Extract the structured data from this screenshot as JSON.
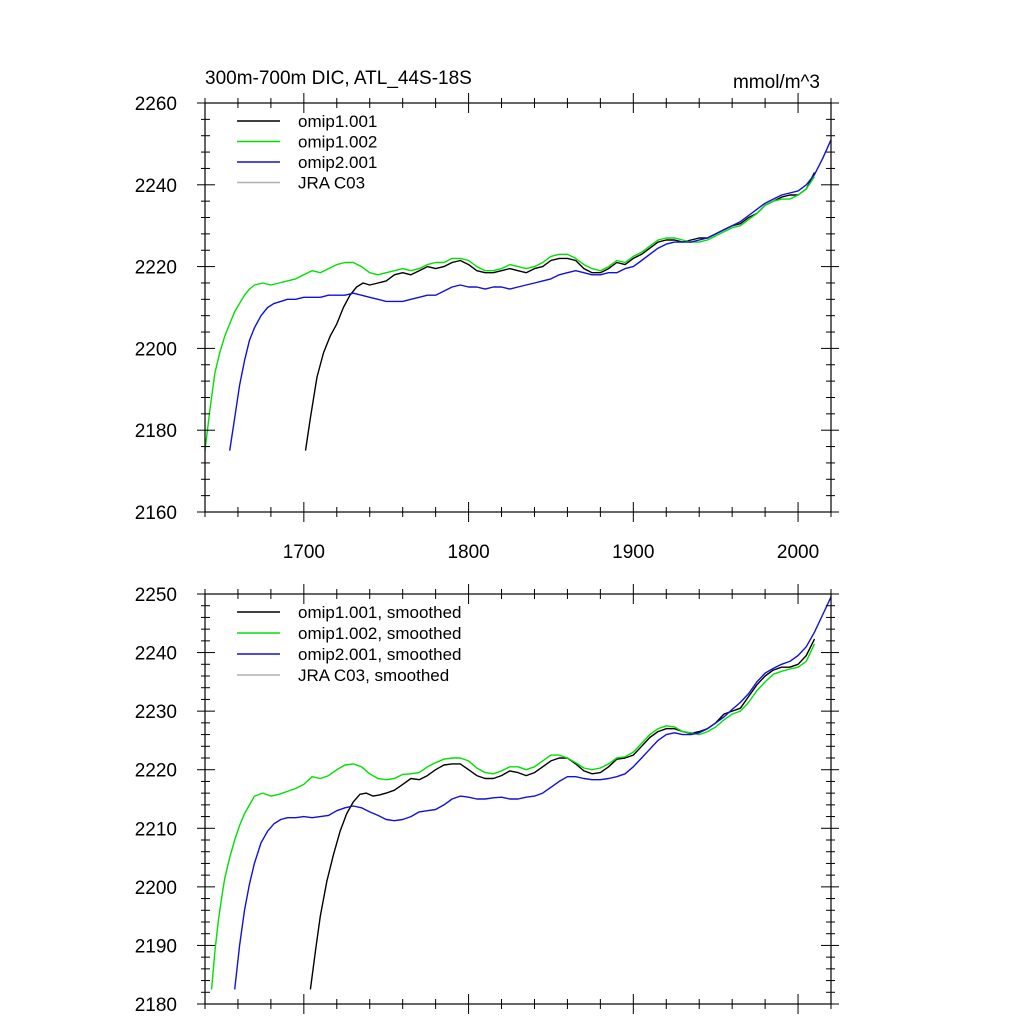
{
  "chart_data": [
    {
      "type": "line",
      "title": "300m-700m DIC, ATL_44S-18S",
      "units": "mmol/m^3",
      "xlabel": "",
      "ylabel": "",
      "xlim": [
        1640,
        2020
      ],
      "ylim": [
        2160,
        2260
      ],
      "x_ticks": [
        1700,
        1800,
        1900,
        2000
      ],
      "y_ticks": [
        2160,
        2180,
        2200,
        2220,
        2240,
        2260
      ],
      "legend_position": "top-left",
      "colors": {
        "omip1_001": "#000000",
        "omip1_002": "#00e000",
        "omip2_001": "#1010dd",
        "jra_c03": "#b0b0b0"
      },
      "series": [
        {
          "name": "omip1.001",
          "color": "#000000",
          "x": [
            1701,
            1704,
            1708,
            1712,
            1716,
            1720,
            1724,
            1728,
            1732,
            1736,
            1740,
            1745,
            1750,
            1755,
            1760,
            1765,
            1770,
            1775,
            1780,
            1785,
            1790,
            1795,
            1800,
            1805,
            1810,
            1815,
            1820,
            1825,
            1830,
            1835,
            1840,
            1845,
            1850,
            1855,
            1860,
            1865,
            1870,
            1875,
            1880,
            1885,
            1890,
            1895,
            1900,
            1905,
            1910,
            1915,
            1920,
            1925,
            1930,
            1935,
            1940,
            1945,
            1950,
            1955,
            1960,
            1965,
            1970,
            1975,
            1980,
            1985,
            1990,
            1995,
            2000,
            2005,
            2010
          ],
          "values": [
            2175,
            2183,
            2193,
            2199,
            2203,
            2206,
            2210,
            2213,
            2215,
            2216,
            2215.5,
            2216,
            2216.5,
            2218,
            2218.5,
            2218,
            2219,
            2220,
            2219.5,
            2220,
            2221,
            2221.5,
            2220.5,
            2219,
            2218.5,
            2218.5,
            2219,
            2219.5,
            2219,
            2218.5,
            2219.5,
            2220,
            2221.5,
            2222,
            2222,
            2221.5,
            2219.5,
            2218.5,
            2218.5,
            2219.5,
            2221,
            2220.5,
            2222,
            2223,
            2224.5,
            2226,
            2226.5,
            2226.5,
            2226,
            2226.5,
            2227,
            2227,
            2228,
            2229,
            2230,
            2230.5,
            2232,
            2233,
            2235,
            2236,
            2237,
            2237.5,
            2237.5,
            2239,
            2243
          ]
        },
        {
          "name": "omip1.002",
          "color": "#00e000",
          "x": [
            1640,
            1643,
            1646,
            1649,
            1652,
            1655,
            1658,
            1661,
            1664,
            1667,
            1670,
            1675,
            1680,
            1685,
            1690,
            1695,
            1700,
            1705,
            1710,
            1715,
            1720,
            1725,
            1730,
            1735,
            1740,
            1745,
            1750,
            1755,
            1760,
            1765,
            1770,
            1775,
            1780,
            1785,
            1790,
            1795,
            1800,
            1805,
            1810,
            1815,
            1820,
            1825,
            1830,
            1835,
            1840,
            1845,
            1850,
            1855,
            1860,
            1865,
            1870,
            1875,
            1880,
            1885,
            1890,
            1895,
            1900,
            1905,
            1910,
            1915,
            1920,
            1925,
            1930,
            1935,
            1940,
            1945,
            1950,
            1955,
            1960,
            1965,
            1970,
            1975,
            1980,
            1985,
            1990,
            1995,
            2000,
            2005,
            2010
          ],
          "values": [
            2175,
            2185,
            2194,
            2199,
            2203,
            2206,
            2209,
            2211,
            2213,
            2214.5,
            2215.5,
            2216,
            2215.5,
            2216,
            2216.5,
            2217,
            2218,
            2219,
            2218.5,
            2219.5,
            2220.5,
            2221,
            2221,
            2220,
            2218.5,
            2218,
            2218.5,
            2219,
            2219.5,
            2219,
            2219.5,
            2220.5,
            2221,
            2221,
            2222,
            2222,
            2221.5,
            2220,
            2219,
            2219,
            2219.5,
            2220.5,
            2220,
            2219.5,
            2220,
            2221,
            2222.5,
            2223,
            2223,
            2222,
            2220.5,
            2219.5,
            2219,
            2220,
            2221.5,
            2221,
            2222.5,
            2223.5,
            2225,
            2226.5,
            2227,
            2227,
            2226.5,
            2226,
            2226,
            2226.5,
            2227.5,
            2228.5,
            2229.5,
            2230,
            2231.5,
            2233,
            2235,
            2236,
            2236.5,
            2236.5,
            2237.5,
            2239,
            2242
          ]
        },
        {
          "name": "omip2.001",
          "color": "#1010dd",
          "x": [
            1655,
            1658,
            1661,
            1664,
            1667,
            1670,
            1674,
            1678,
            1682,
            1686,
            1690,
            1695,
            1700,
            1705,
            1710,
            1715,
            1720,
            1725,
            1730,
            1735,
            1740,
            1745,
            1750,
            1755,
            1760,
            1765,
            1770,
            1775,
            1780,
            1785,
            1790,
            1795,
            1800,
            1805,
            1810,
            1815,
            1820,
            1825,
            1830,
            1835,
            1840,
            1845,
            1850,
            1855,
            1860,
            1865,
            1870,
            1875,
            1880,
            1885,
            1890,
            1895,
            1900,
            1905,
            1910,
            1915,
            1920,
            1925,
            1930,
            1935,
            1940,
            1945,
            1950,
            1955,
            1960,
            1965,
            1970,
            1975,
            1980,
            1985,
            1990,
            1995,
            2000,
            2005,
            2010,
            2015,
            2020
          ],
          "values": [
            2175,
            2183,
            2191,
            2197,
            2202,
            2205,
            2208,
            2210,
            2211,
            2211.5,
            2212,
            2212,
            2212.5,
            2212.5,
            2212.5,
            2213,
            2213,
            2213,
            2213.5,
            2213,
            2212.5,
            2212,
            2211.5,
            2211.5,
            2211.5,
            2212,
            2212.5,
            2213,
            2213,
            2214,
            2215,
            2215.5,
            2215,
            2215,
            2214.5,
            2215,
            2215,
            2214.5,
            2215,
            2215.5,
            2216,
            2216.5,
            2217,
            2218,
            2218.5,
            2219,
            2218.5,
            2218,
            2218,
            2218.5,
            2218.5,
            2219.5,
            2220,
            2221.5,
            2223,
            2224.5,
            2225.5,
            2226,
            2226,
            2226,
            2226.5,
            2227,
            2228,
            2229,
            2230,
            2231,
            2232.5,
            2234,
            2235.5,
            2236.5,
            2237.5,
            2238,
            2238.5,
            2240,
            2242.5,
            2246.5,
            2251
          ]
        },
        {
          "name": "JRA C03",
          "color": "#b0b0b0",
          "x": [],
          "values": []
        }
      ]
    },
    {
      "type": "line",
      "title": "",
      "xlabel": "",
      "ylabel": "",
      "xlim": [
        1640,
        2020
      ],
      "ylim": [
        2180,
        2250
      ],
      "x_ticks": [
        1700,
        1800,
        1900,
        2000
      ],
      "y_ticks": [
        2180,
        2190,
        2200,
        2210,
        2220,
        2230,
        2240,
        2250
      ],
      "legend_position": "top-left",
      "series": [
        {
          "name": "omip1.001, smoothed",
          "color": "#000000",
          "x": [
            1704,
            1707,
            1710,
            1714,
            1718,
            1722,
            1726,
            1730,
            1734,
            1738,
            1742,
            1746,
            1750,
            1755,
            1760,
            1765,
            1770,
            1775,
            1780,
            1785,
            1790,
            1795,
            1800,
            1805,
            1810,
            1815,
            1820,
            1825,
            1830,
            1835,
            1840,
            1845,
            1850,
            1855,
            1860,
            1865,
            1870,
            1875,
            1880,
            1885,
            1890,
            1895,
            1900,
            1905,
            1910,
            1915,
            1920,
            1925,
            1930,
            1935,
            1940,
            1945,
            1950,
            1955,
            1960,
            1965,
            1970,
            1975,
            1980,
            1985,
            1990,
            1995,
            2000,
            2005,
            2010
          ],
          "values": [
            2182.5,
            2189,
            2195,
            2201,
            2205.5,
            2209.5,
            2212.5,
            2214.5,
            2215.8,
            2216,
            2215.5,
            2215.7,
            2216,
            2216.5,
            2217.5,
            2218.5,
            2218.3,
            2219,
            2220,
            2220.8,
            2221,
            2221,
            2220,
            2219,
            2218.5,
            2218.5,
            2219,
            2219.8,
            2219.5,
            2219,
            2219.5,
            2220.5,
            2221.5,
            2222,
            2222,
            2221,
            2219.8,
            2219.3,
            2219.5,
            2220.5,
            2221.8,
            2222,
            2222.5,
            2224,
            2225.5,
            2226.5,
            2227,
            2227,
            2226.5,
            2226.2,
            2226.5,
            2227,
            2228,
            2229.5,
            2230,
            2230.5,
            2232.5,
            2234.5,
            2236,
            2237,
            2237.5,
            2237.5,
            2238,
            2239.5,
            2242.3
          ]
        },
        {
          "name": "omip1.002, smoothed",
          "color": "#00e000",
          "x": [
            1644,
            1646,
            1648,
            1650,
            1652,
            1655,
            1658,
            1661,
            1664,
            1667,
            1670,
            1675,
            1680,
            1685,
            1690,
            1695,
            1700,
            1705,
            1710,
            1715,
            1720,
            1725,
            1730,
            1735,
            1740,
            1745,
            1750,
            1755,
            1760,
            1765,
            1770,
            1775,
            1780,
            1785,
            1790,
            1795,
            1800,
            1805,
            1810,
            1815,
            1820,
            1825,
            1830,
            1835,
            1840,
            1845,
            1850,
            1855,
            1860,
            1865,
            1870,
            1875,
            1880,
            1885,
            1890,
            1895,
            1900,
            1905,
            1910,
            1915,
            1920,
            1925,
            1930,
            1935,
            1940,
            1945,
            1950,
            1955,
            1960,
            1965,
            1970,
            1975,
            1980,
            1985,
            1990,
            1995,
            2000,
            2005,
            2010
          ],
          "values": [
            2182.5,
            2189,
            2194,
            2198,
            2201.5,
            2205,
            2208,
            2210.5,
            2212.5,
            2214,
            2215.5,
            2216,
            2215.5,
            2215.8,
            2216.3,
            2216.8,
            2217.5,
            2218.8,
            2218.5,
            2219,
            2220,
            2220.8,
            2221,
            2220.5,
            2219.3,
            2218.5,
            2218.3,
            2218.5,
            2219.2,
            2219.3,
            2219.5,
            2220.5,
            2221.2,
            2221.8,
            2222,
            2222,
            2221.5,
            2220.3,
            2219.5,
            2219.3,
            2219.8,
            2220.5,
            2220.5,
            2220,
            2220.5,
            2221.5,
            2222.5,
            2222.5,
            2222,
            2221.2,
            2220.3,
            2220,
            2220.3,
            2221,
            2222,
            2222.2,
            2223,
            2224.5,
            2226,
            2227,
            2227.5,
            2227.3,
            2226.5,
            2226.3,
            2226,
            2226.5,
            2227.3,
            2228.5,
            2229.5,
            2230,
            2231.5,
            2233.5,
            2235,
            2236.3,
            2236.8,
            2237.2,
            2237.5,
            2238.5,
            2241.5
          ]
        },
        {
          "name": "omip2.001, smoothed",
          "color": "#1010dd",
          "x": [
            1658,
            1661,
            1664,
            1667,
            1670,
            1674,
            1678,
            1682,
            1686,
            1690,
            1695,
            1700,
            1705,
            1710,
            1715,
            1720,
            1725,
            1730,
            1735,
            1740,
            1745,
            1750,
            1755,
            1760,
            1765,
            1770,
            1775,
            1780,
            1785,
            1790,
            1795,
            1800,
            1805,
            1810,
            1815,
            1820,
            1825,
            1830,
            1835,
            1840,
            1845,
            1850,
            1855,
            1860,
            1865,
            1870,
            1875,
            1880,
            1885,
            1890,
            1895,
            1900,
            1905,
            1910,
            1915,
            1920,
            1925,
            1930,
            1935,
            1940,
            1945,
            1950,
            1955,
            1960,
            1965,
            1970,
            1975,
            1980,
            1985,
            1990,
            1995,
            2000,
            2005,
            2010,
            2015,
            2020
          ],
          "values": [
            2182.5,
            2190,
            2196,
            2200.5,
            2204,
            2207.5,
            2209.5,
            2210.8,
            2211.5,
            2211.8,
            2211.8,
            2212,
            2211.8,
            2212,
            2212.2,
            2213,
            2213.5,
            2213.8,
            2213.5,
            2212.8,
            2212.2,
            2211.5,
            2211.3,
            2211.5,
            2212,
            2212.8,
            2213,
            2213.2,
            2214,
            2215,
            2215.5,
            2215.3,
            2215,
            2215,
            2215.2,
            2215.3,
            2215,
            2215,
            2215.3,
            2215.5,
            2216,
            2217,
            2218,
            2218.8,
            2218.8,
            2218.5,
            2218.3,
            2218.3,
            2218.5,
            2218.8,
            2219.3,
            2220.5,
            2222,
            2223.5,
            2225,
            2226,
            2226.3,
            2226,
            2226,
            2226.3,
            2227,
            2228,
            2229,
            2230.3,
            2231.5,
            2233,
            2235,
            2236.5,
            2237.3,
            2238,
            2238.5,
            2239.5,
            2241,
            2243.5,
            2246.5,
            2249.5
          ]
        },
        {
          "name": "JRA C03, smoothed",
          "color": "#b0b0b0",
          "x": [],
          "values": []
        }
      ]
    }
  ]
}
